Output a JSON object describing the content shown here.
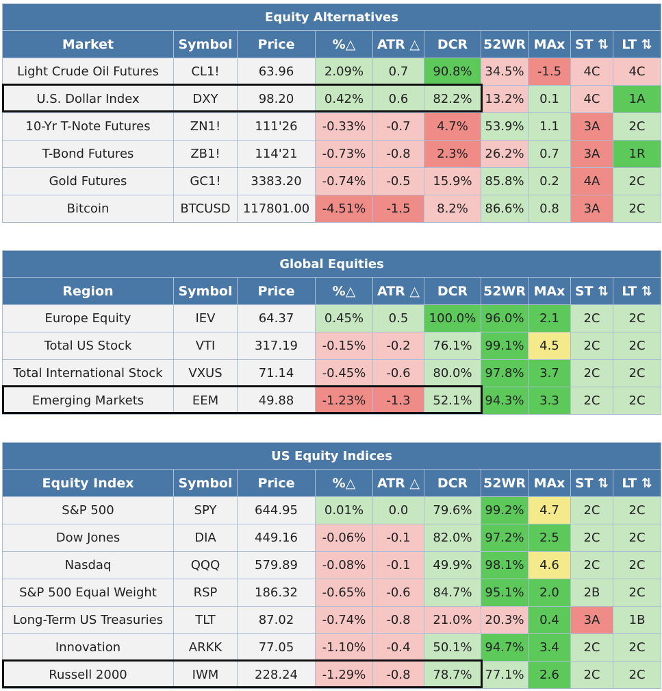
{
  "sections": [
    {
      "title": "Equity Alternatives",
      "headers": [
        "Market",
        "Symbol",
        "Price",
        "%△",
        "ATR △",
        "DCR",
        "52WR",
        "MAx",
        "ST ⇅",
        "LT ⇅"
      ],
      "rows": [
        {
          "name": "Light Crude Oil Futures",
          "symbol": "CL1!",
          "price": "63.96",
          "pct": "2.09%",
          "atr": "0.7",
          "dcr": "90.8%",
          "wr": "34.5%",
          "max": "-1.5",
          "st": "4C",
          "lt": "4C",
          "colors": [
            "c-n",
            "c-n",
            "c-n",
            "c-g1",
            "c-g1",
            "c-g2",
            "c-r1",
            "c-r2",
            "c-r1",
            "c-r1"
          ]
        },
        {
          "name": "U.S. Dollar Index",
          "symbol": "DXY",
          "price": "98.20",
          "pct": "0.42%",
          "atr": "0.6",
          "dcr": "82.2%",
          "wr": "13.2%",
          "max": "0.1",
          "st": "4C",
          "lt": "1A",
          "colors": [
            "c-n",
            "c-n",
            "c-n",
            "c-g1",
            "c-g1",
            "c-g1",
            "c-r1",
            "c-g1",
            "c-r1",
            "c-g2"
          ]
        },
        {
          "name": "10-Yr T-Note Futures",
          "symbol": "ZN1!",
          "price": "111'26",
          "pct": "-0.33%",
          "atr": "-0.7",
          "dcr": "4.7%",
          "wr": "53.9%",
          "max": "1.1",
          "st": "3A",
          "lt": "2C",
          "colors": [
            "c-n",
            "c-n",
            "c-n",
            "c-r1",
            "c-r1",
            "c-r2",
            "c-g1",
            "c-g1",
            "c-r2",
            "c-g1"
          ]
        },
        {
          "name": "T-Bond Futures",
          "symbol": "ZB1!",
          "price": "114'21",
          "pct": "-0.73%",
          "atr": "-0.8",
          "dcr": "2.3%",
          "wr": "26.2%",
          "max": "0.7",
          "st": "3A",
          "lt": "1R",
          "colors": [
            "c-n",
            "c-n",
            "c-n",
            "c-r1",
            "c-r1",
            "c-r2",
            "c-r1",
            "c-g1",
            "c-r2",
            "c-g2"
          ]
        },
        {
          "name": "Gold Futures",
          "symbol": "GC1!",
          "price": "3383.20",
          "pct": "-0.74%",
          "atr": "-0.5",
          "dcr": "15.9%",
          "wr": "85.8%",
          "max": "0.2",
          "st": "4A",
          "lt": "2C",
          "colors": [
            "c-n",
            "c-n",
            "c-n",
            "c-r1",
            "c-r1",
            "c-r1",
            "c-g1",
            "c-g1",
            "c-r2",
            "c-g1"
          ]
        },
        {
          "name": "Bitcoin",
          "symbol": "BTCUSD",
          "price": "117801.00",
          "pct": "-4.51%",
          "atr": "-1.5",
          "dcr": "8.2%",
          "wr": "86.6%",
          "max": "0.8",
          "st": "3A",
          "lt": "2C",
          "colors": [
            "c-n",
            "c-n",
            "c-n",
            "c-r2",
            "c-r2",
            "c-r1",
            "c-g1",
            "c-g1",
            "c-r2",
            "c-g1"
          ]
        }
      ]
    },
    {
      "title": "Global Equities",
      "headers": [
        "Region",
        "Symbol",
        "Price",
        "%△",
        "ATR △",
        "DCR",
        "52WR",
        "MAx",
        "ST ⇅",
        "LT ⇅"
      ],
      "rows": [
        {
          "name": "Europe Equity",
          "symbol": "IEV",
          "price": "64.37",
          "pct": "0.45%",
          "atr": "0.5",
          "dcr": "100.0%",
          "wr": "96.0%",
          "max": "2.1",
          "st": "2C",
          "lt": "2C",
          "colors": [
            "c-n",
            "c-n",
            "c-n",
            "c-g1",
            "c-g1",
            "c-g2",
            "c-g2",
            "c-g2",
            "c-g1",
            "c-g1"
          ]
        },
        {
          "name": "Total US Stock",
          "symbol": "VTI",
          "price": "317.19",
          "pct": "-0.15%",
          "atr": "-0.2",
          "dcr": "76.1%",
          "wr": "99.1%",
          "max": "4.5",
          "st": "2C",
          "lt": "2C",
          "colors": [
            "c-n",
            "c-n",
            "c-n",
            "c-r1",
            "c-r1",
            "c-g1",
            "c-g2",
            "c-y",
            "c-g1",
            "c-g1"
          ]
        },
        {
          "name": "Total International Stock",
          "symbol": "VXUS",
          "price": "71.14",
          "pct": "-0.45%",
          "atr": "-0.6",
          "dcr": "80.0%",
          "wr": "97.8%",
          "max": "3.7",
          "st": "2C",
          "lt": "2C",
          "colors": [
            "c-n",
            "c-n",
            "c-n",
            "c-r1",
            "c-r1",
            "c-g1",
            "c-g2",
            "c-g2",
            "c-g1",
            "c-g1"
          ]
        },
        {
          "name": "Emerging Markets",
          "symbol": "EEM",
          "price": "49.88",
          "pct": "-1.23%",
          "atr": "-1.3",
          "dcr": "52.1%",
          "wr": "94.3%",
          "max": "3.3",
          "st": "2C",
          "lt": "2C",
          "colors": [
            "c-n",
            "c-n",
            "c-n",
            "c-r2",
            "c-r2",
            "c-g1",
            "c-g2",
            "c-g2",
            "c-g1",
            "c-g1"
          ]
        }
      ]
    },
    {
      "title": "US Equity Indices",
      "headers": [
        "Equity Index",
        "Symbol",
        "Price",
        "%△",
        "ATR △",
        "DCR",
        "52WR",
        "MAx",
        "ST ⇅",
        "LT ⇅"
      ],
      "rows": [
        {
          "name": "S&P 500",
          "symbol": "SPY",
          "price": "644.95",
          "pct": "0.01%",
          "atr": "0.0",
          "dcr": "79.6%",
          "wr": "99.2%",
          "max": "4.7",
          "st": "2C",
          "lt": "2C",
          "colors": [
            "c-n",
            "c-n",
            "c-n",
            "c-g1",
            "c-g1",
            "c-g1",
            "c-g2",
            "c-y",
            "c-g1",
            "c-g1"
          ]
        },
        {
          "name": "Dow Jones",
          "symbol": "DIA",
          "price": "449.16",
          "pct": "-0.06%",
          "atr": "-0.1",
          "dcr": "82.0%",
          "wr": "97.2%",
          "max": "2.5",
          "st": "2C",
          "lt": "2C",
          "colors": [
            "c-n",
            "c-n",
            "c-n",
            "c-r1",
            "c-r1",
            "c-g1",
            "c-g2",
            "c-g2",
            "c-g1",
            "c-g1"
          ]
        },
        {
          "name": "Nasdaq",
          "symbol": "QQQ",
          "price": "579.89",
          "pct": "-0.08%",
          "atr": "-0.1",
          "dcr": "49.9%",
          "wr": "98.1%",
          "max": "4.6",
          "st": "2C",
          "lt": "2C",
          "colors": [
            "c-n",
            "c-n",
            "c-n",
            "c-r1",
            "c-r1",
            "c-g1",
            "c-g2",
            "c-y",
            "c-g1",
            "c-g1"
          ]
        },
        {
          "name": "S&P 500 Equal Weight",
          "symbol": "RSP",
          "price": "186.32",
          "pct": "-0.65%",
          "atr": "-0.6",
          "dcr": "84.7%",
          "wr": "95.1%",
          "max": "2.0",
          "st": "2B",
          "lt": "2C",
          "colors": [
            "c-n",
            "c-n",
            "c-n",
            "c-r1",
            "c-r1",
            "c-g1",
            "c-g2",
            "c-g2",
            "c-g1",
            "c-g1"
          ]
        },
        {
          "name": "Long-Term US Treasuries",
          "symbol": "TLT",
          "price": "87.02",
          "pct": "-0.74%",
          "atr": "-0.8",
          "dcr": "21.0%",
          "wr": "20.3%",
          "max": "0.4",
          "st": "3A",
          "lt": "1B",
          "colors": [
            "c-n",
            "c-n",
            "c-n",
            "c-r1",
            "c-r1",
            "c-r1",
            "c-r1",
            "c-g2",
            "c-r2",
            "c-g1"
          ]
        },
        {
          "name": "Innovation",
          "symbol": "ARKK",
          "price": "77.05",
          "pct": "-1.10%",
          "atr": "-0.4",
          "dcr": "50.1%",
          "wr": "94.7%",
          "max": "3.4",
          "st": "2C",
          "lt": "2C",
          "colors": [
            "c-n",
            "c-n",
            "c-n",
            "c-r1",
            "c-r1",
            "c-g1",
            "c-g2",
            "c-g2",
            "c-g1",
            "c-g1"
          ]
        },
        {
          "name": "Russell 2000",
          "symbol": "IWM",
          "price": "228.24",
          "pct": "-1.29%",
          "atr": "-0.8",
          "dcr": "78.7%",
          "wr": "77.1%",
          "max": "2.6",
          "st": "2C",
          "lt": "2C",
          "colors": [
            "c-n",
            "c-n",
            "c-n",
            "c-r1",
            "c-r1",
            "c-g1",
            "c-g1",
            "c-g2",
            "c-g1",
            "c-g1"
          ]
        }
      ]
    }
  ]
}
